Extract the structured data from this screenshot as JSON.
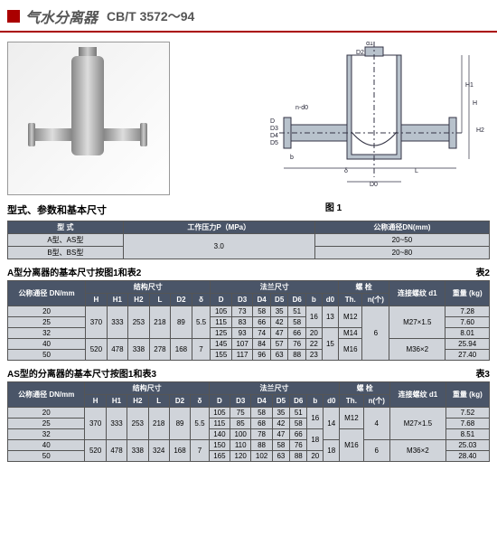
{
  "header": {
    "title": "气水分离器",
    "standard": "CB/T 3572～94"
  },
  "diagram": {
    "figLabel": "图 1",
    "dims": [
      "d1",
      "D",
      "D0",
      "D1",
      "D2",
      "D3",
      "D4",
      "D5",
      "H",
      "H1",
      "H2",
      "L",
      "δ",
      "b",
      "n-d0"
    ]
  },
  "table1": {
    "label": "型式、参数和基本尺寸",
    "headers": [
      "型  式",
      "工作压力P（MPa）",
      "公称通径DN(mm)"
    ],
    "rows": [
      [
        "A型、AS型",
        "3.0",
        "20~50"
      ],
      [
        "B型、BS型",
        "",
        "20~80"
      ]
    ]
  },
  "table2": {
    "caption": "A型分离器的基本尺寸按图1和表2",
    "tag": "表2",
    "groupHeaders": {
      "g1": "结构尺寸",
      "g2": "法兰尺寸",
      "g3": "螺  栓",
      "g4": "连接螺纹 d1",
      "g5": "重量 (kg)"
    },
    "cols": [
      "公称通径 DN/mm",
      "H",
      "H1",
      "H2",
      "L",
      "D2",
      "δ",
      "D",
      "D3",
      "D4",
      "D5",
      "D6",
      "b",
      "d0",
      "Th.",
      "n(个)"
    ],
    "rows": [
      [
        "20",
        "370",
        "333",
        "253",
        "218",
        "89",
        "5.5",
        "105",
        "73",
        "58",
        "35",
        "51",
        "16",
        "13",
        "M12",
        "6",
        "M27×1.5",
        "7.28"
      ],
      [
        "25",
        "",
        "",
        "",
        "",
        "",
        "",
        "115",
        "83",
        "66",
        "42",
        "58",
        "",
        "",
        "",
        "",
        "",
        "7.60"
      ],
      [
        "32",
        "",
        "",
        "",
        "",
        "",
        "",
        "125",
        "93",
        "74",
        "47",
        "66",
        "20",
        "15",
        "M14",
        "",
        "",
        "8.01"
      ],
      [
        "40",
        "520",
        "478",
        "338",
        "278",
        "168",
        "7",
        "145",
        "107",
        "84",
        "57",
        "76",
        "22",
        "",
        "M16",
        "",
        "M36×2",
        "25.94"
      ],
      [
        "50",
        "",
        "",
        "",
        "",
        "",
        "",
        "155",
        "117",
        "96",
        "63",
        "88",
        "23",
        "",
        "",
        "",
        "",
        "27.40"
      ]
    ]
  },
  "table3": {
    "caption": "AS型的分离器的基本尺寸按图1和表3",
    "tag": "表3",
    "groupHeaders": {
      "g1": "结构尺寸",
      "g2": "法兰尺寸",
      "g3": "螺  栓",
      "g4": "连接螺纹 d1",
      "g5": "重量 (kg)"
    },
    "cols": [
      "公称通径 DN/mm",
      "H",
      "H1",
      "H2",
      "L",
      "D2",
      "δ",
      "D",
      "D3",
      "D4",
      "D5",
      "D6",
      "b",
      "d0",
      "Th.",
      "n(个)"
    ],
    "rows": [
      [
        "20",
        "370",
        "333",
        "253",
        "218",
        "89",
        "5.5",
        "105",
        "75",
        "58",
        "35",
        "51",
        "16",
        "14",
        "M12",
        "4",
        "M27×1.5",
        "7.52"
      ],
      [
        "25",
        "",
        "",
        "",
        "",
        "",
        "",
        "115",
        "85",
        "68",
        "42",
        "58",
        "",
        "",
        "",
        "",
        "",
        "7.68"
      ],
      [
        "32",
        "",
        "",
        "",
        "",
        "",
        "",
        "140",
        "100",
        "78",
        "47",
        "66",
        "18",
        "",
        "M16",
        "",
        "",
        "8.51"
      ],
      [
        "40",
        "520",
        "478",
        "338",
        "324",
        "168",
        "7",
        "150",
        "110",
        "88",
        "58",
        "76",
        "",
        "18",
        "",
        "6",
        "M36×2",
        "25.03"
      ],
      [
        "50",
        "",
        "",
        "",
        "",
        "",
        "",
        "165",
        "120",
        "102",
        "63",
        "88",
        "20",
        "",
        "",
        "",
        "",
        "28.40"
      ]
    ]
  }
}
